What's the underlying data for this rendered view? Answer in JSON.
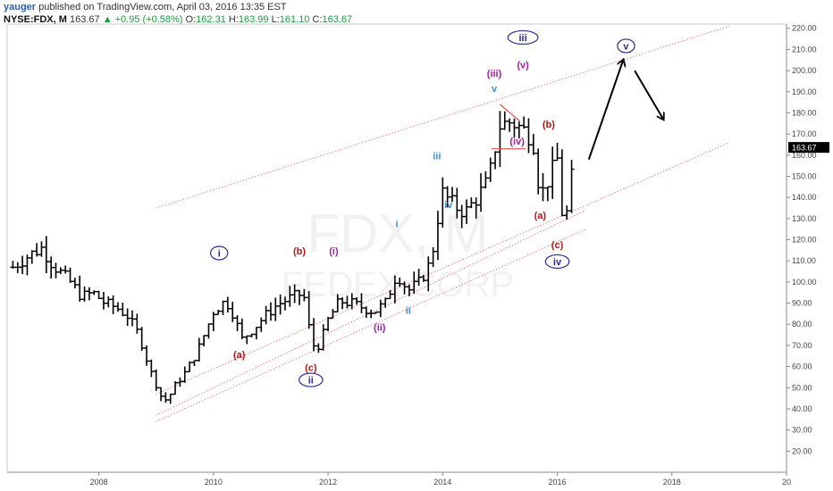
{
  "header": {
    "author": "yauger",
    "published": "published on TradingView.com, April 03, 2016 13:35 EST",
    "symbol": "NYSE:FDX, M",
    "price": "163.67",
    "change": "▲ +0.95 (+0.58%)",
    "o_label": "O:",
    "o_value": "162.31",
    "h_label": "H:",
    "h_value": "163.99",
    "l_label": "L:",
    "l_value": "161.10",
    "c_label": "C:",
    "c_value": "163.67"
  },
  "watermark": {
    "line1": "FDX, M",
    "line2": "FEDEX CORP"
  },
  "colors": {
    "bars": "#000000",
    "channel": "#e88080",
    "wave_blue": "#3a8fd0",
    "wave_navy": "#2a2a8a",
    "wave_red": "#b01818",
    "wave_purple": "#a020a0",
    "price_tag_bg": "#000000",
    "price_tag_fg": "#ffffff"
  },
  "chart_data": {
    "type": "ohlc",
    "symbol": "NYSE:FDX",
    "interval": "M",
    "last_price": "163.67",
    "ylim": [
      10,
      222
    ],
    "xlim": [
      2006.4,
      2020.0
    ],
    "y_ticks": [
      "20.00",
      "30.00",
      "40.00",
      "50.00",
      "60.00",
      "70.00",
      "80.00",
      "90.00",
      "100.00",
      "110.00",
      "120.00",
      "130.00",
      "140.00",
      "150.00",
      "160.00",
      "170.00",
      "180.00",
      "190.00",
      "200.00",
      "210.00",
      "220.00"
    ],
    "x_ticks": [
      "2008",
      "2010",
      "2012",
      "2014",
      "2016",
      "2018",
      "20"
    ],
    "price_anchors": [
      [
        2006.5,
        107
      ],
      [
        2006.8,
        113
      ],
      [
        2007.0,
        116
      ],
      [
        2007.2,
        108
      ],
      [
        2007.5,
        100
      ],
      [
        2007.7,
        93
      ],
      [
        2007.9,
        95
      ],
      [
        2008.1,
        90
      ],
      [
        2008.3,
        88
      ],
      [
        2008.5,
        84
      ],
      [
        2008.7,
        75
      ],
      [
        2008.9,
        58
      ],
      [
        2009.1,
        45
      ],
      [
        2009.2,
        44
      ],
      [
        2009.3,
        50
      ],
      [
        2009.5,
        57
      ],
      [
        2009.7,
        66
      ],
      [
        2009.9,
        79
      ],
      [
        2010.0,
        86
      ],
      [
        2010.2,
        91
      ],
      [
        2010.3,
        88
      ],
      [
        2010.5,
        73
      ],
      [
        2010.7,
        78
      ],
      [
        2010.9,
        84
      ],
      [
        2011.1,
        89
      ],
      [
        2011.3,
        92
      ],
      [
        2011.5,
        94
      ],
      [
        2011.6,
        92
      ],
      [
        2011.7,
        72
      ],
      [
        2011.8,
        68
      ],
      [
        2011.9,
        74
      ],
      [
        2012.0,
        82
      ],
      [
        2012.2,
        91
      ],
      [
        2012.4,
        90
      ],
      [
        2012.6,
        88
      ],
      [
        2012.8,
        86
      ],
      [
        2013.0,
        90
      ],
      [
        2013.1,
        97
      ],
      [
        2013.2,
        104
      ],
      [
        2013.3,
        100
      ],
      [
        2013.4,
        96
      ],
      [
        2013.6,
        100
      ],
      [
        2013.8,
        110
      ],
      [
        2013.9,
        128
      ],
      [
        2014.0,
        142
      ],
      [
        2014.2,
        136
      ],
      [
        2014.4,
        133
      ],
      [
        2014.6,
        140
      ],
      [
        2014.8,
        148
      ],
      [
        2014.9,
        162
      ],
      [
        2015.0,
        174
      ],
      [
        2015.2,
        176
      ],
      [
        2015.4,
        172
      ],
      [
        2015.5,
        170
      ],
      [
        2015.6,
        165
      ],
      [
        2015.7,
        140
      ],
      [
        2015.9,
        152
      ],
      [
        2016.0,
        158
      ],
      [
        2016.1,
        128
      ],
      [
        2016.2,
        135
      ],
      [
        2016.3,
        163.67
      ]
    ],
    "channel_lines": [
      {
        "name": "upper",
        "from": [
          2009.0,
          135
        ],
        "to": [
          2019.0,
          221
        ]
      },
      {
        "name": "middle",
        "from": [
          2009.0,
          47
        ],
        "to": [
          2019.0,
          166
        ]
      },
      {
        "name": "lower-1",
        "from": [
          2009.0,
          37
        ],
        "to": [
          2016.5,
          134
        ]
      },
      {
        "name": "lower-2",
        "from": [
          2009.0,
          34
        ],
        "to": [
          2016.5,
          125
        ]
      }
    ],
    "wave_labels": [
      {
        "text": "i",
        "x": 2010.1,
        "y": 112,
        "color": "navy",
        "circle": true
      },
      {
        "text": "(a)",
        "x": 2010.45,
        "y": 64,
        "color": "red",
        "circle": false
      },
      {
        "text": "(b)",
        "x": 2011.5,
        "y": 113,
        "color": "red",
        "circle": false
      },
      {
        "text": "(c)",
        "x": 2011.7,
        "y": 58,
        "color": "red",
        "circle": false
      },
      {
        "text": "ii",
        "x": 2011.7,
        "y": 52,
        "color": "navy",
        "circle": true
      },
      {
        "text": "(i)",
        "x": 2012.1,
        "y": 113,
        "color": "purple",
        "circle": false
      },
      {
        "text": "(ii)",
        "x": 2012.9,
        "y": 77,
        "color": "purple",
        "circle": false
      },
      {
        "text": "i",
        "x": 2013.2,
        "y": 126,
        "color": "blue",
        "circle": false
      },
      {
        "text": "ii",
        "x": 2013.4,
        "y": 85,
        "color": "blue",
        "circle": false
      },
      {
        "text": "iii",
        "x": 2013.9,
        "y": 158,
        "color": "blue",
        "circle": false
      },
      {
        "text": "iv",
        "x": 2014.1,
        "y": 135,
        "color": "blue",
        "circle": false
      },
      {
        "text": "(iii)",
        "x": 2014.9,
        "y": 197,
        "color": "purple",
        "circle": false
      },
      {
        "text": "v",
        "x": 2014.9,
        "y": 190,
        "color": "blue",
        "circle": false
      },
      {
        "text": "iii",
        "x": 2015.4,
        "y": 214,
        "color": "navy",
        "circle": true
      },
      {
        "text": "(v)",
        "x": 2015.4,
        "y": 201,
        "color": "purple",
        "circle": false
      },
      {
        "text": "(iv)",
        "x": 2015.3,
        "y": 165,
        "color": "purple",
        "circle": false
      },
      {
        "text": "(b)",
        "x": 2015.85,
        "y": 173,
        "color": "red",
        "circle": false
      },
      {
        "text": "(a)",
        "x": 2015.7,
        "y": 130,
        "color": "red",
        "circle": false
      },
      {
        "text": "(c)",
        "x": 2016.0,
        "y": 116,
        "color": "red",
        "circle": false
      },
      {
        "text": "iv",
        "x": 2016.0,
        "y": 108,
        "color": "navy",
        "circle": true
      },
      {
        "text": "v",
        "x": 2017.2,
        "y": 210,
        "color": "navy",
        "circle": true
      }
    ],
    "arrows": [
      {
        "from": [
          2016.55,
          158
        ],
        "to": [
          2017.15,
          205
        ]
      },
      {
        "from": [
          2017.35,
          200
        ],
        "to": [
          2017.85,
          177
        ]
      }
    ]
  }
}
